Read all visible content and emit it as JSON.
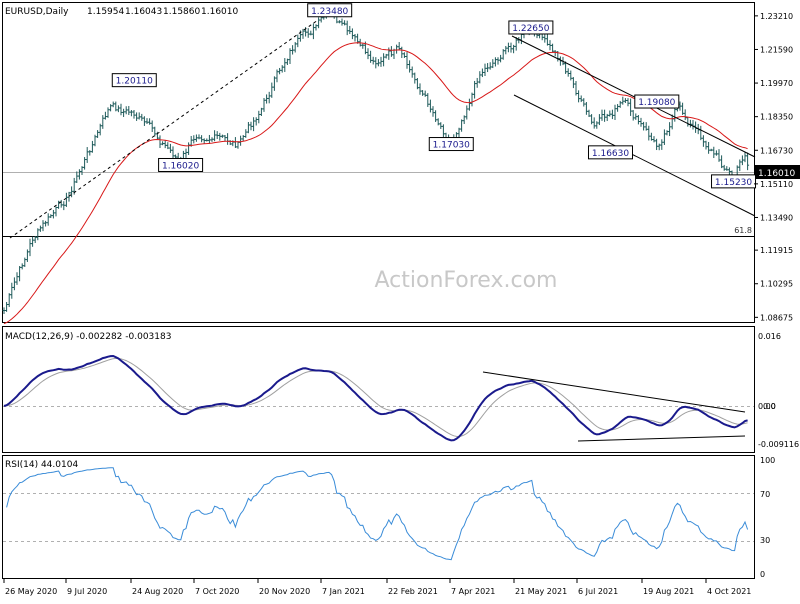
{
  "chart_data": [
    {
      "type": "bar",
      "style": "ohlc",
      "title": "EURUSD,Daily",
      "ohlc_readout": [
        "1.15954",
        "1.16043",
        "1.15860",
        "1.16010"
      ],
      "current_price_label": "1.16010",
      "y_ticks": [
        "1.23210",
        "1.21590",
        "1.19970",
        "1.18350",
        "1.16730",
        "1.15110",
        "1.13490",
        "1.11915",
        "1.10295",
        "1.08675"
      ],
      "ylim": [
        1.0845,
        1.2383
      ],
      "x_tick_labels": [
        "26 May 2020",
        "9 Jul 2020",
        "24 Aug 2020",
        "7 Oct 2020",
        "20 Nov 2020",
        "7 Jan 2021",
        "22 Feb 2021",
        "7 Apr 2021",
        "21 May 2021",
        "6 Jul 2021",
        "19 Aug 2021",
        "4 Oct 2021"
      ],
      "x": [
        "2020-05-26",
        "2020-06-15",
        "2020-07-09",
        "2020-08-07",
        "2020-08-24",
        "2020-09-25",
        "2020-10-07",
        "2020-11-04",
        "2020-11-20",
        "2020-12-10",
        "2021-01-06",
        "2021-02-05",
        "2021-02-22",
        "2021-03-31",
        "2021-04-20",
        "2021-05-25",
        "2021-06-15",
        "2021-07-07",
        "2021-07-28",
        "2021-08-20",
        "2021-09-03",
        "2021-10-12",
        "2021-10-20",
        "2021-10-22"
      ],
      "close": [
        1.09,
        1.125,
        1.145,
        1.188,
        1.185,
        1.162,
        1.176,
        1.17,
        1.188,
        1.216,
        1.233,
        1.21,
        1.215,
        1.171,
        1.205,
        1.226,
        1.211,
        1.178,
        1.19,
        1.169,
        1.188,
        1.154,
        1.166,
        1.1601
      ],
      "annotations": [
        {
          "label": "1.23480",
          "x": "2021-01-06",
          "y": 1.2348
        },
        {
          "label": "1.20110",
          "x": "2020-08-24",
          "y": 1.2011
        },
        {
          "label": "1.16020",
          "x": "2020-09-25",
          "y": 1.1602
        },
        {
          "label": "1.22650",
          "x": "2021-05-25",
          "y": 1.2265
        },
        {
          "label": "1.17030",
          "x": "2021-03-31",
          "y": 1.1703
        },
        {
          "label": "1.19080",
          "x": "2021-08-20",
          "y": 1.1908
        },
        {
          "label": "1.16630",
          "x": "2021-07-19",
          "y": 1.1663
        },
        {
          "label": "1.15230",
          "x": "2021-10-12",
          "y": 1.1523
        }
      ],
      "fib_label": "61.8",
      "fib_level": 1.1301,
      "watermark": "ActionForex.com",
      "colors": {
        "bars": "#1e5a5a",
        "ma": "#d81818",
        "line": "#000000",
        "grid": "#c8c8c8"
      }
    },
    {
      "type": "line",
      "title": "MACD(12,26,9) -0.002282 -0.003183",
      "y_ticks": [
        "0.016",
        "0.00",
        "0.0",
        "-0.009116"
      ],
      "colors": {
        "macd": "#1a1a8c",
        "signal": "#a0a0a0"
      }
    },
    {
      "type": "line",
      "title": "RSI(14) 44.0104",
      "y_ticks": [
        "100",
        "70",
        "30",
        "0"
      ],
      "levels": [
        70,
        30
      ],
      "colors": {
        "rsi": "#3a8cd8"
      }
    }
  ]
}
